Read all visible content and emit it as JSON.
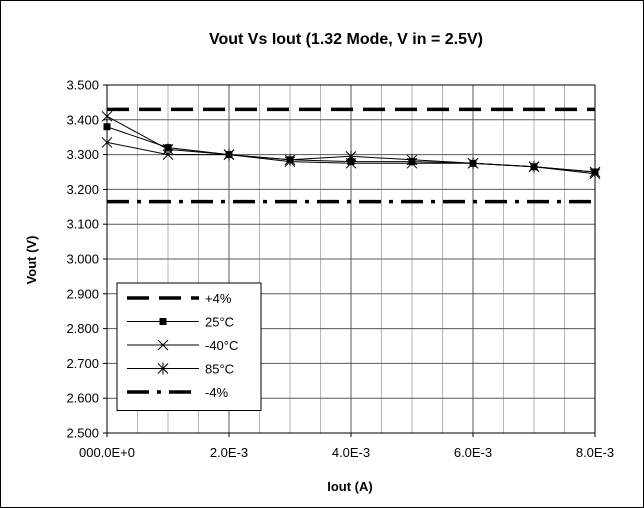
{
  "chart_data": {
    "type": "line",
    "title": "Vout Vs Iout (1.32 Mode, V in = 2.5V)",
    "xlabel": "Iout (A)",
    "ylabel": "Vout (V)",
    "xlim": [
      0,
      0.008
    ],
    "ylim": [
      2.5,
      3.5
    ],
    "xticks": [
      0,
      0.002,
      0.004,
      0.006,
      0.008
    ],
    "xtick_labels": [
      "000.0E+0",
      "2.0E-3",
      "4.0E-3",
      "6.0E-3",
      "8.0E-3"
    ],
    "yticks": [
      2.5,
      2.6,
      2.7,
      2.8,
      2.9,
      3.0,
      3.1,
      3.2,
      3.3,
      3.4,
      3.5
    ],
    "ytick_labels": [
      "2.500",
      "2.600",
      "2.700",
      "2.800",
      "2.900",
      "3.000",
      "3.100",
      "3.200",
      "3.300",
      "3.400",
      "3.500"
    ],
    "grid": true,
    "legend_position": "bottom-left",
    "series": [
      {
        "name": "+4%",
        "style": "long-dash",
        "marker": "none",
        "x": [
          0,
          0.008
        ],
        "y": [
          3.43,
          3.43
        ]
      },
      {
        "name": "25°C",
        "style": "solid",
        "marker": "square",
        "x": [
          0,
          0.001,
          0.002,
          0.003,
          0.004,
          0.005,
          0.006,
          0.007,
          0.008
        ],
        "y": [
          3.38,
          3.32,
          3.3,
          3.285,
          3.28,
          3.28,
          3.275,
          3.265,
          3.25
        ]
      },
      {
        "name": "-40°C",
        "style": "solid",
        "marker": "x",
        "x": [
          0,
          0.001,
          0.002,
          0.003,
          0.004,
          0.005,
          0.006,
          0.007,
          0.008
        ],
        "y": [
          3.335,
          3.3,
          3.3,
          3.28,
          3.275,
          3.275,
          3.275,
          3.265,
          3.245
        ]
      },
      {
        "name": "85°C",
        "style": "solid",
        "marker": "asterisk",
        "x": [
          0,
          0.001,
          0.002,
          0.003,
          0.004,
          0.005,
          0.006,
          0.007,
          0.008
        ],
        "y": [
          3.41,
          3.315,
          3.3,
          3.285,
          3.295,
          3.285,
          3.275,
          3.265,
          3.25
        ]
      },
      {
        "name": "-4%",
        "style": "dash-dot",
        "marker": "none",
        "x": [
          0,
          0.008
        ],
        "y": [
          3.165,
          3.165
        ]
      }
    ]
  }
}
